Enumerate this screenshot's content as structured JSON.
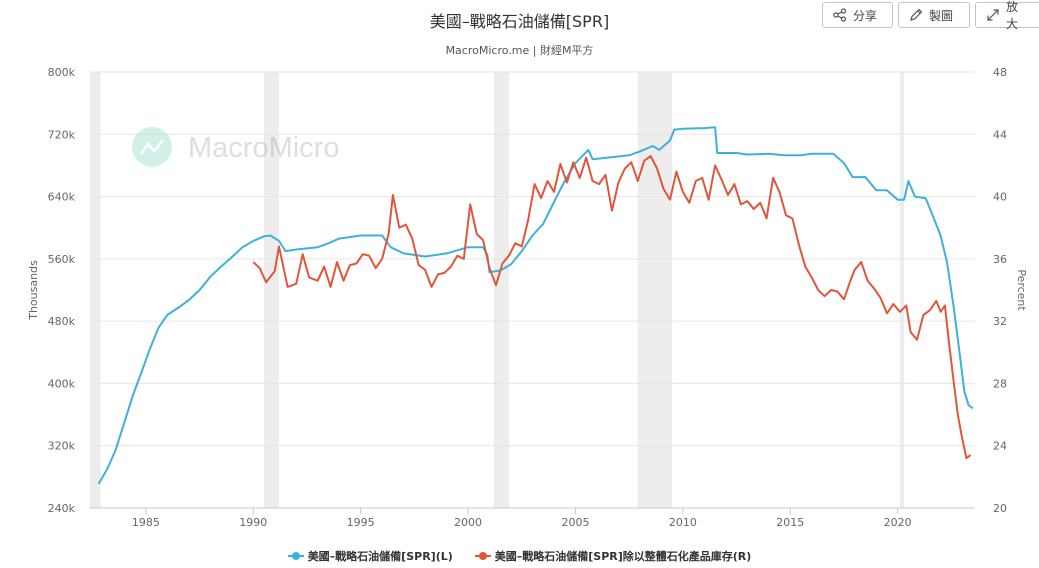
{
  "header": {
    "title": "美國–戰略石油儲備[SPR]",
    "subtitle": "MacroMicro.me | 財經M平方"
  },
  "toolbar": {
    "share_label": "分享",
    "draw_label": "製圖",
    "expand_label": "放大"
  },
  "watermark": {
    "text": "MacroMicro"
  },
  "chart_data": {
    "type": "line",
    "title": "美國–戰略石油儲備[SPR]",
    "subtitle": "MacroMicro.me | 財經M平方",
    "ylabel_left": "Thousands",
    "ylabel_right": "Percent",
    "xlim": [
      1982.4,
      2023.6
    ],
    "ylim_left": [
      240,
      800
    ],
    "ylim_right": [
      20,
      48
    ],
    "x_ticks": [
      "1985",
      "1990",
      "1995",
      "2000",
      "2005",
      "2010",
      "2015",
      "2020"
    ],
    "y_ticks_left": [
      "240k",
      "320k",
      "400k",
      "480k",
      "560k",
      "640k",
      "720k",
      "800k"
    ],
    "y_ticks_right": [
      "20",
      "24",
      "28",
      "32",
      "36",
      "40",
      "44",
      "48"
    ],
    "grid": true,
    "legend_position": "bottom",
    "recession_bands": [
      [
        1982.4,
        1982.9
      ],
      [
        1990.5,
        1991.2
      ],
      [
        2001.2,
        2001.9
      ],
      [
        2007.9,
        2009.5
      ],
      [
        2020.1,
        2020.3
      ]
    ],
    "series": [
      {
        "name": "美國–戰略石油儲備[SPR](L)",
        "color": "#3eb1da",
        "axis": "left",
        "points": [
          [
            1982.8,
            271
          ],
          [
            1983.2,
            290
          ],
          [
            1983.6,
            315
          ],
          [
            1984.0,
            350
          ],
          [
            1984.4,
            385
          ],
          [
            1984.8,
            415
          ],
          [
            1985.2,
            445
          ],
          [
            1985.6,
            472
          ],
          [
            1986.0,
            488
          ],
          [
            1986.5,
            497
          ],
          [
            1987.0,
            507
          ],
          [
            1987.5,
            520
          ],
          [
            1988.0,
            537
          ],
          [
            1988.5,
            550
          ],
          [
            1989.0,
            562
          ],
          [
            1989.5,
            575
          ],
          [
            1990.0,
            583
          ],
          [
            1990.5,
            589
          ],
          [
            1990.8,
            590
          ],
          [
            1991.2,
            583
          ],
          [
            1991.5,
            570
          ],
          [
            1992.0,
            572
          ],
          [
            1993.0,
            575
          ],
          [
            1993.5,
            580
          ],
          [
            1994.0,
            586
          ],
          [
            1995.0,
            590
          ],
          [
            1996.0,
            590
          ],
          [
            1996.4,
            575
          ],
          [
            1997.0,
            567
          ],
          [
            1998.0,
            563
          ],
          [
            1999.0,
            567
          ],
          [
            2000.0,
            575
          ],
          [
            2000.7,
            575
          ],
          [
            2000.9,
            565
          ],
          [
            2001.0,
            543
          ],
          [
            2001.5,
            545
          ],
          [
            2002.0,
            553
          ],
          [
            2002.5,
            570
          ],
          [
            2003.0,
            590
          ],
          [
            2003.5,
            605
          ],
          [
            2004.0,
            633
          ],
          [
            2004.5,
            660
          ],
          [
            2005.0,
            683
          ],
          [
            2005.6,
            700
          ],
          [
            2005.8,
            688
          ],
          [
            2006.5,
            690
          ],
          [
            2007.5,
            693
          ],
          [
            2008.0,
            698
          ],
          [
            2008.6,
            705
          ],
          [
            2008.9,
            700
          ],
          [
            2009.4,
            712
          ],
          [
            2009.6,
            726
          ],
          [
            2010.0,
            727
          ],
          [
            2011.0,
            728
          ],
          [
            2011.5,
            729
          ],
          [
            2011.6,
            696
          ],
          [
            2012.5,
            696
          ],
          [
            2013.0,
            694
          ],
          [
            2014.0,
            695
          ],
          [
            2014.7,
            693
          ],
          [
            2015.5,
            693
          ],
          [
            2016.0,
            695
          ],
          [
            2017.0,
            695
          ],
          [
            2017.5,
            683
          ],
          [
            2017.9,
            665
          ],
          [
            2018.5,
            665
          ],
          [
            2019.0,
            648
          ],
          [
            2019.5,
            648
          ],
          [
            2020.0,
            636
          ],
          [
            2020.3,
            636
          ],
          [
            2020.5,
            660
          ],
          [
            2020.8,
            640
          ],
          [
            2021.3,
            638
          ],
          [
            2021.6,
            618
          ],
          [
            2022.0,
            590
          ],
          [
            2022.3,
            555
          ],
          [
            2022.6,
            500
          ],
          [
            2022.9,
            435
          ],
          [
            2023.1,
            390
          ],
          [
            2023.3,
            372
          ],
          [
            2023.5,
            368
          ]
        ]
      },
      {
        "name": "美國–戰略石油儲備[SPR]除以整體石化產品庫存(R)",
        "color": "#e0563a",
        "axis": "right",
        "points": [
          [
            1990.0,
            35.8
          ],
          [
            1990.3,
            35.4
          ],
          [
            1990.6,
            34.5
          ],
          [
            1991.0,
            35.2
          ],
          [
            1991.2,
            36.8
          ],
          [
            1991.6,
            34.2
          ],
          [
            1992.0,
            34.4
          ],
          [
            1992.3,
            36.3
          ],
          [
            1992.6,
            34.8
          ],
          [
            1993.0,
            34.6
          ],
          [
            1993.3,
            35.5
          ],
          [
            1993.6,
            34.2
          ],
          [
            1993.9,
            35.8
          ],
          [
            1994.2,
            34.6
          ],
          [
            1994.5,
            35.6
          ],
          [
            1994.8,
            35.7
          ],
          [
            1995.1,
            36.3
          ],
          [
            1995.4,
            36.2
          ],
          [
            1995.7,
            35.4
          ],
          [
            1996.0,
            36.0
          ],
          [
            1996.3,
            37.6
          ],
          [
            1996.5,
            40.1
          ],
          [
            1996.8,
            38.0
          ],
          [
            1997.1,
            38.2
          ],
          [
            1997.4,
            37.3
          ],
          [
            1997.7,
            35.6
          ],
          [
            1998.0,
            35.3
          ],
          [
            1998.3,
            34.2
          ],
          [
            1998.6,
            35.0
          ],
          [
            1998.9,
            35.1
          ],
          [
            1999.2,
            35.5
          ],
          [
            1999.5,
            36.2
          ],
          [
            1999.8,
            36.0
          ],
          [
            2000.1,
            39.5
          ],
          [
            2000.4,
            37.6
          ],
          [
            2000.7,
            37.2
          ],
          [
            2001.0,
            35.4
          ],
          [
            2001.3,
            34.3
          ],
          [
            2001.6,
            35.7
          ],
          [
            2001.9,
            36.2
          ],
          [
            2002.2,
            37.0
          ],
          [
            2002.5,
            36.8
          ],
          [
            2002.8,
            38.5
          ],
          [
            2003.1,
            40.8
          ],
          [
            2003.4,
            39.9
          ],
          [
            2003.7,
            41.0
          ],
          [
            2004.0,
            40.3
          ],
          [
            2004.3,
            42.1
          ],
          [
            2004.6,
            40.9
          ],
          [
            2004.9,
            42.2
          ],
          [
            2005.2,
            41.2
          ],
          [
            2005.5,
            42.5
          ],
          [
            2005.8,
            41.0
          ],
          [
            2006.1,
            40.8
          ],
          [
            2006.4,
            41.4
          ],
          [
            2006.7,
            39.1
          ],
          [
            2007.0,
            40.9
          ],
          [
            2007.3,
            41.8
          ],
          [
            2007.6,
            42.2
          ],
          [
            2007.9,
            41.0
          ],
          [
            2008.2,
            42.3
          ],
          [
            2008.5,
            42.6
          ],
          [
            2008.8,
            41.8
          ],
          [
            2009.1,
            40.5
          ],
          [
            2009.4,
            39.8
          ],
          [
            2009.7,
            41.6
          ],
          [
            2010.0,
            40.3
          ],
          [
            2010.3,
            39.6
          ],
          [
            2010.6,
            41.0
          ],
          [
            2010.9,
            41.2
          ],
          [
            2011.2,
            39.8
          ],
          [
            2011.5,
            42.0
          ],
          [
            2011.8,
            41.1
          ],
          [
            2012.1,
            40.1
          ],
          [
            2012.4,
            40.8
          ],
          [
            2012.7,
            39.5
          ],
          [
            2013.0,
            39.7
          ],
          [
            2013.3,
            39.2
          ],
          [
            2013.6,
            39.6
          ],
          [
            2013.9,
            38.6
          ],
          [
            2014.2,
            41.2
          ],
          [
            2014.5,
            40.3
          ],
          [
            2014.8,
            38.8
          ],
          [
            2015.1,
            38.6
          ],
          [
            2015.4,
            36.9
          ],
          [
            2015.7,
            35.5
          ],
          [
            2016.0,
            34.8
          ],
          [
            2016.3,
            34.0
          ],
          [
            2016.6,
            33.6
          ],
          [
            2016.9,
            34.0
          ],
          [
            2017.2,
            33.9
          ],
          [
            2017.5,
            33.4
          ],
          [
            2017.8,
            34.6
          ],
          [
            2018.0,
            35.3
          ],
          [
            2018.3,
            35.8
          ],
          [
            2018.6,
            34.6
          ],
          [
            2018.9,
            34.1
          ],
          [
            2019.2,
            33.5
          ],
          [
            2019.5,
            32.5
          ],
          [
            2019.8,
            33.1
          ],
          [
            2020.1,
            32.6
          ],
          [
            2020.4,
            33.0
          ],
          [
            2020.6,
            31.3
          ],
          [
            2020.9,
            30.8
          ],
          [
            2021.2,
            32.4
          ],
          [
            2021.5,
            32.7
          ],
          [
            2021.8,
            33.3
          ],
          [
            2022.0,
            32.6
          ],
          [
            2022.2,
            33.0
          ],
          [
            2022.4,
            30.5
          ],
          [
            2022.6,
            28.2
          ],
          [
            2022.8,
            26.0
          ],
          [
            2023.0,
            24.5
          ],
          [
            2023.2,
            23.2
          ],
          [
            2023.4,
            23.4
          ]
        ]
      }
    ]
  }
}
